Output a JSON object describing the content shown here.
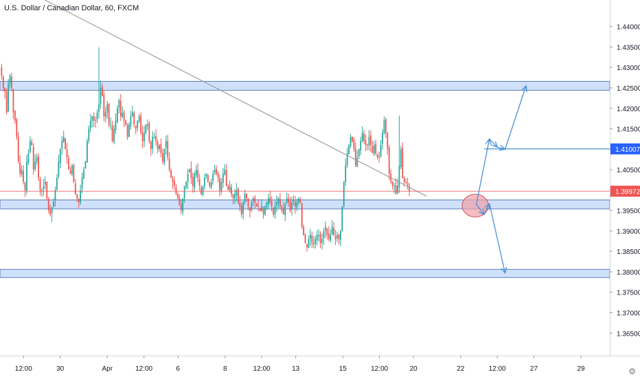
{
  "header": {
    "title": "U.S. Dollar / Canadian Dollar, 60, FXCM"
  },
  "colors": {
    "up": "#26a69a",
    "down": "#ef5350",
    "zone_fill": "#cfe0fa",
    "zone_stroke": "#5b7fb8",
    "arrow": "#4a90d9",
    "trendline": "#9e9e9e",
    "price_label_bg": "#ef5350",
    "level_label_bg": "#2962ff",
    "axis_text": "#131722",
    "ellipse_fill": "#f2a0a6",
    "ellipse_stroke": "#d05060"
  },
  "settings_icon": "gear-icon",
  "chart_data": {
    "type": "candlestick",
    "symbol": "U.S. Dollar / Canadian Dollar",
    "interval": "60",
    "source": "FXCM",
    "y_axis": {
      "range": [
        1.3595,
        1.4465
      ],
      "ticks": [
        "1.44000",
        "1.43500",
        "1.43000",
        "1.42500",
        "1.42000",
        "1.41500",
        "1.41000",
        "1.40500",
        "1.40000",
        "1.39500",
        "1.39000",
        "1.38500",
        "1.38000",
        "1.37500",
        "1.37000",
        "1.36500"
      ],
      "tick_values": [
        1.44,
        1.435,
        1.43,
        1.425,
        1.42,
        1.415,
        1.41,
        1.405,
        1.4,
        1.395,
        1.39,
        1.385,
        1.38,
        1.375,
        1.37,
        1.365
      ]
    },
    "x_axis": {
      "range": [
        -3,
        113.5
      ],
      "labels": [
        {
          "text": "12:00",
          "x": 1.5
        },
        {
          "text": "30",
          "x": 8.5
        },
        {
          "text": "Apr",
          "x": 17.5
        },
        {
          "text": "12:00",
          "x": 24.5
        },
        {
          "text": "6",
          "x": 31
        },
        {
          "text": "8",
          "x": 40
        },
        {
          "text": "12:00",
          "x": 47
        },
        {
          "text": "13",
          "x": 53.5
        },
        {
          "text": "15",
          "x": 62.5
        },
        {
          "text": "12:00",
          "x": 69.5
        },
        {
          "text": "20",
          "x": 76
        },
        {
          "text": "22",
          "x": 85
        },
        {
          "text": "12:00",
          "x": 92
        },
        {
          "text": "27",
          "x": 99
        },
        {
          "text": "29",
          "x": 108
        }
      ]
    },
    "candles_close": [
      1.428,
      1.425,
      1.424,
      1.419,
      1.426,
      1.428,
      1.425,
      1.419,
      1.417,
      1.413,
      1.407,
      1.404,
      1.405,
      1.402,
      1.4,
      1.407,
      1.409,
      1.412,
      1.411,
      1.405,
      1.407,
      1.408,
      1.403,
      1.4,
      1.4,
      1.401,
      1.402,
      1.398,
      1.395,
      1.394,
      1.3958,
      1.3972,
      1.4,
      1.403,
      1.407,
      1.41,
      1.412,
      1.413,
      1.41,
      1.408,
      1.405,
      1.404,
      1.406,
      1.402,
      1.399,
      1.398,
      1.397,
      1.4,
      1.403,
      1.405,
      1.407,
      1.412,
      1.415,
      1.417,
      1.418,
      1.417,
      1.417,
      1.419,
      1.421,
      1.425,
      1.423,
      1.418,
      1.419,
      1.421,
      1.416,
      1.416,
      1.412,
      1.415,
      1.417,
      1.42,
      1.422,
      1.418,
      1.419,
      1.417,
      1.416,
      1.413,
      1.416,
      1.418,
      1.419,
      1.416,
      1.415,
      1.417,
      1.418,
      1.414,
      1.412,
      1.414,
      1.416,
      1.416,
      1.412,
      1.41,
      1.413,
      1.413,
      1.412,
      1.41,
      1.411,
      1.409,
      1.407,
      1.41,
      1.412,
      1.408,
      1.405,
      1.403,
      1.402,
      1.401,
      1.399,
      1.398,
      1.3965,
      1.395,
      1.398,
      1.401,
      1.402,
      1.404,
      1.405,
      1.403,
      1.401,
      1.404,
      1.405,
      1.403,
      1.401,
      1.399,
      1.401,
      1.403,
      1.404,
      1.402,
      1.401,
      1.402,
      1.404,
      1.405,
      1.404,
      1.403,
      1.4,
      1.402,
      1.404,
      1.405,
      1.401,
      1.4,
      1.401,
      1.399,
      1.398,
      1.399,
      1.4,
      1.397,
      1.396,
      1.394,
      1.397,
      1.399,
      1.398,
      1.396,
      1.395,
      1.397,
      1.398,
      1.397,
      1.396,
      1.396,
      1.395,
      1.396,
      1.394,
      1.396,
      1.397,
      1.398,
      1.397,
      1.396,
      1.394,
      1.396,
      1.397,
      1.398,
      1.396,
      1.395,
      1.394,
      1.3965,
      1.398,
      1.397,
      1.395,
      1.397,
      1.3975,
      1.396,
      1.397,
      1.398,
      1.397,
      1.391,
      1.389,
      1.387,
      1.386,
      1.388,
      1.389,
      1.387,
      1.387,
      1.388,
      1.389,
      1.389,
      1.387,
      1.388,
      1.39,
      1.391,
      1.389,
      1.388,
      1.389,
      1.391,
      1.389,
      1.388,
      1.389,
      1.388,
      1.39,
      1.396,
      1.402,
      1.406,
      1.409,
      1.411,
      1.413,
      1.412,
      1.41,
      1.406,
      1.408,
      1.41,
      1.412,
      1.414,
      1.412,
      1.411,
      1.411,
      1.413,
      1.411,
      1.409,
      1.411,
      1.409,
      1.408,
      1.408,
      1.411,
      1.414,
      1.417,
      1.414,
      1.41,
      1.404,
      1.402,
      1.401,
      1.401,
      1.399,
      1.401,
      1.406,
      1.41,
      1.403,
      1.402,
      1.402,
      1.401,
      1.3997
    ],
    "key_candles": [
      {
        "date": "Apr 1 high",
        "high": 1.4349
      },
      {
        "date": "Mar 30 low",
        "low": 1.3922
      },
      {
        "date": "Apr 14 low",
        "low": 1.3857
      },
      {
        "date": "Apr 17 high",
        "high": 1.4182
      }
    ],
    "last_price": 1.39972,
    "last_price_label": "1.39972",
    "zones": [
      {
        "name": "resistance",
        "from": 1.4244,
        "to": 1.4266
      },
      {
        "name": "support",
        "from": 1.3954,
        "to": 1.3976
      },
      {
        "name": "lower-support",
        "from": 1.3786,
        "to": 1.3806
      }
    ],
    "horizontal_line": {
      "value": 1.41007,
      "label": "1.41007",
      "from_x": 89.5
    },
    "trendline": {
      "from": {
        "x": 1,
        "y": 1.4495
      },
      "to": {
        "x": 78.5,
        "y": 1.3985
      }
    },
    "projection_paths": [
      {
        "name": "bullish-path",
        "points": [
          [
            88,
            1.3965
          ],
          [
            90.5,
            1.4125
          ],
          [
            92,
            1.4105
          ],
          [
            93.5,
            1.41
          ],
          [
            97.5,
            1.4255
          ]
        ]
      },
      {
        "name": "bearish-path",
        "points": [
          [
            88,
            1.3965
          ],
          [
            89.5,
            1.394
          ],
          [
            90.5,
            1.3967
          ],
          [
            93.5,
            1.3797
          ]
        ]
      }
    ],
    "highlight_ellipse": {
      "x": 87.8,
      "y": 1.3962,
      "rx": 2.5,
      "ry": 0.0028
    }
  }
}
